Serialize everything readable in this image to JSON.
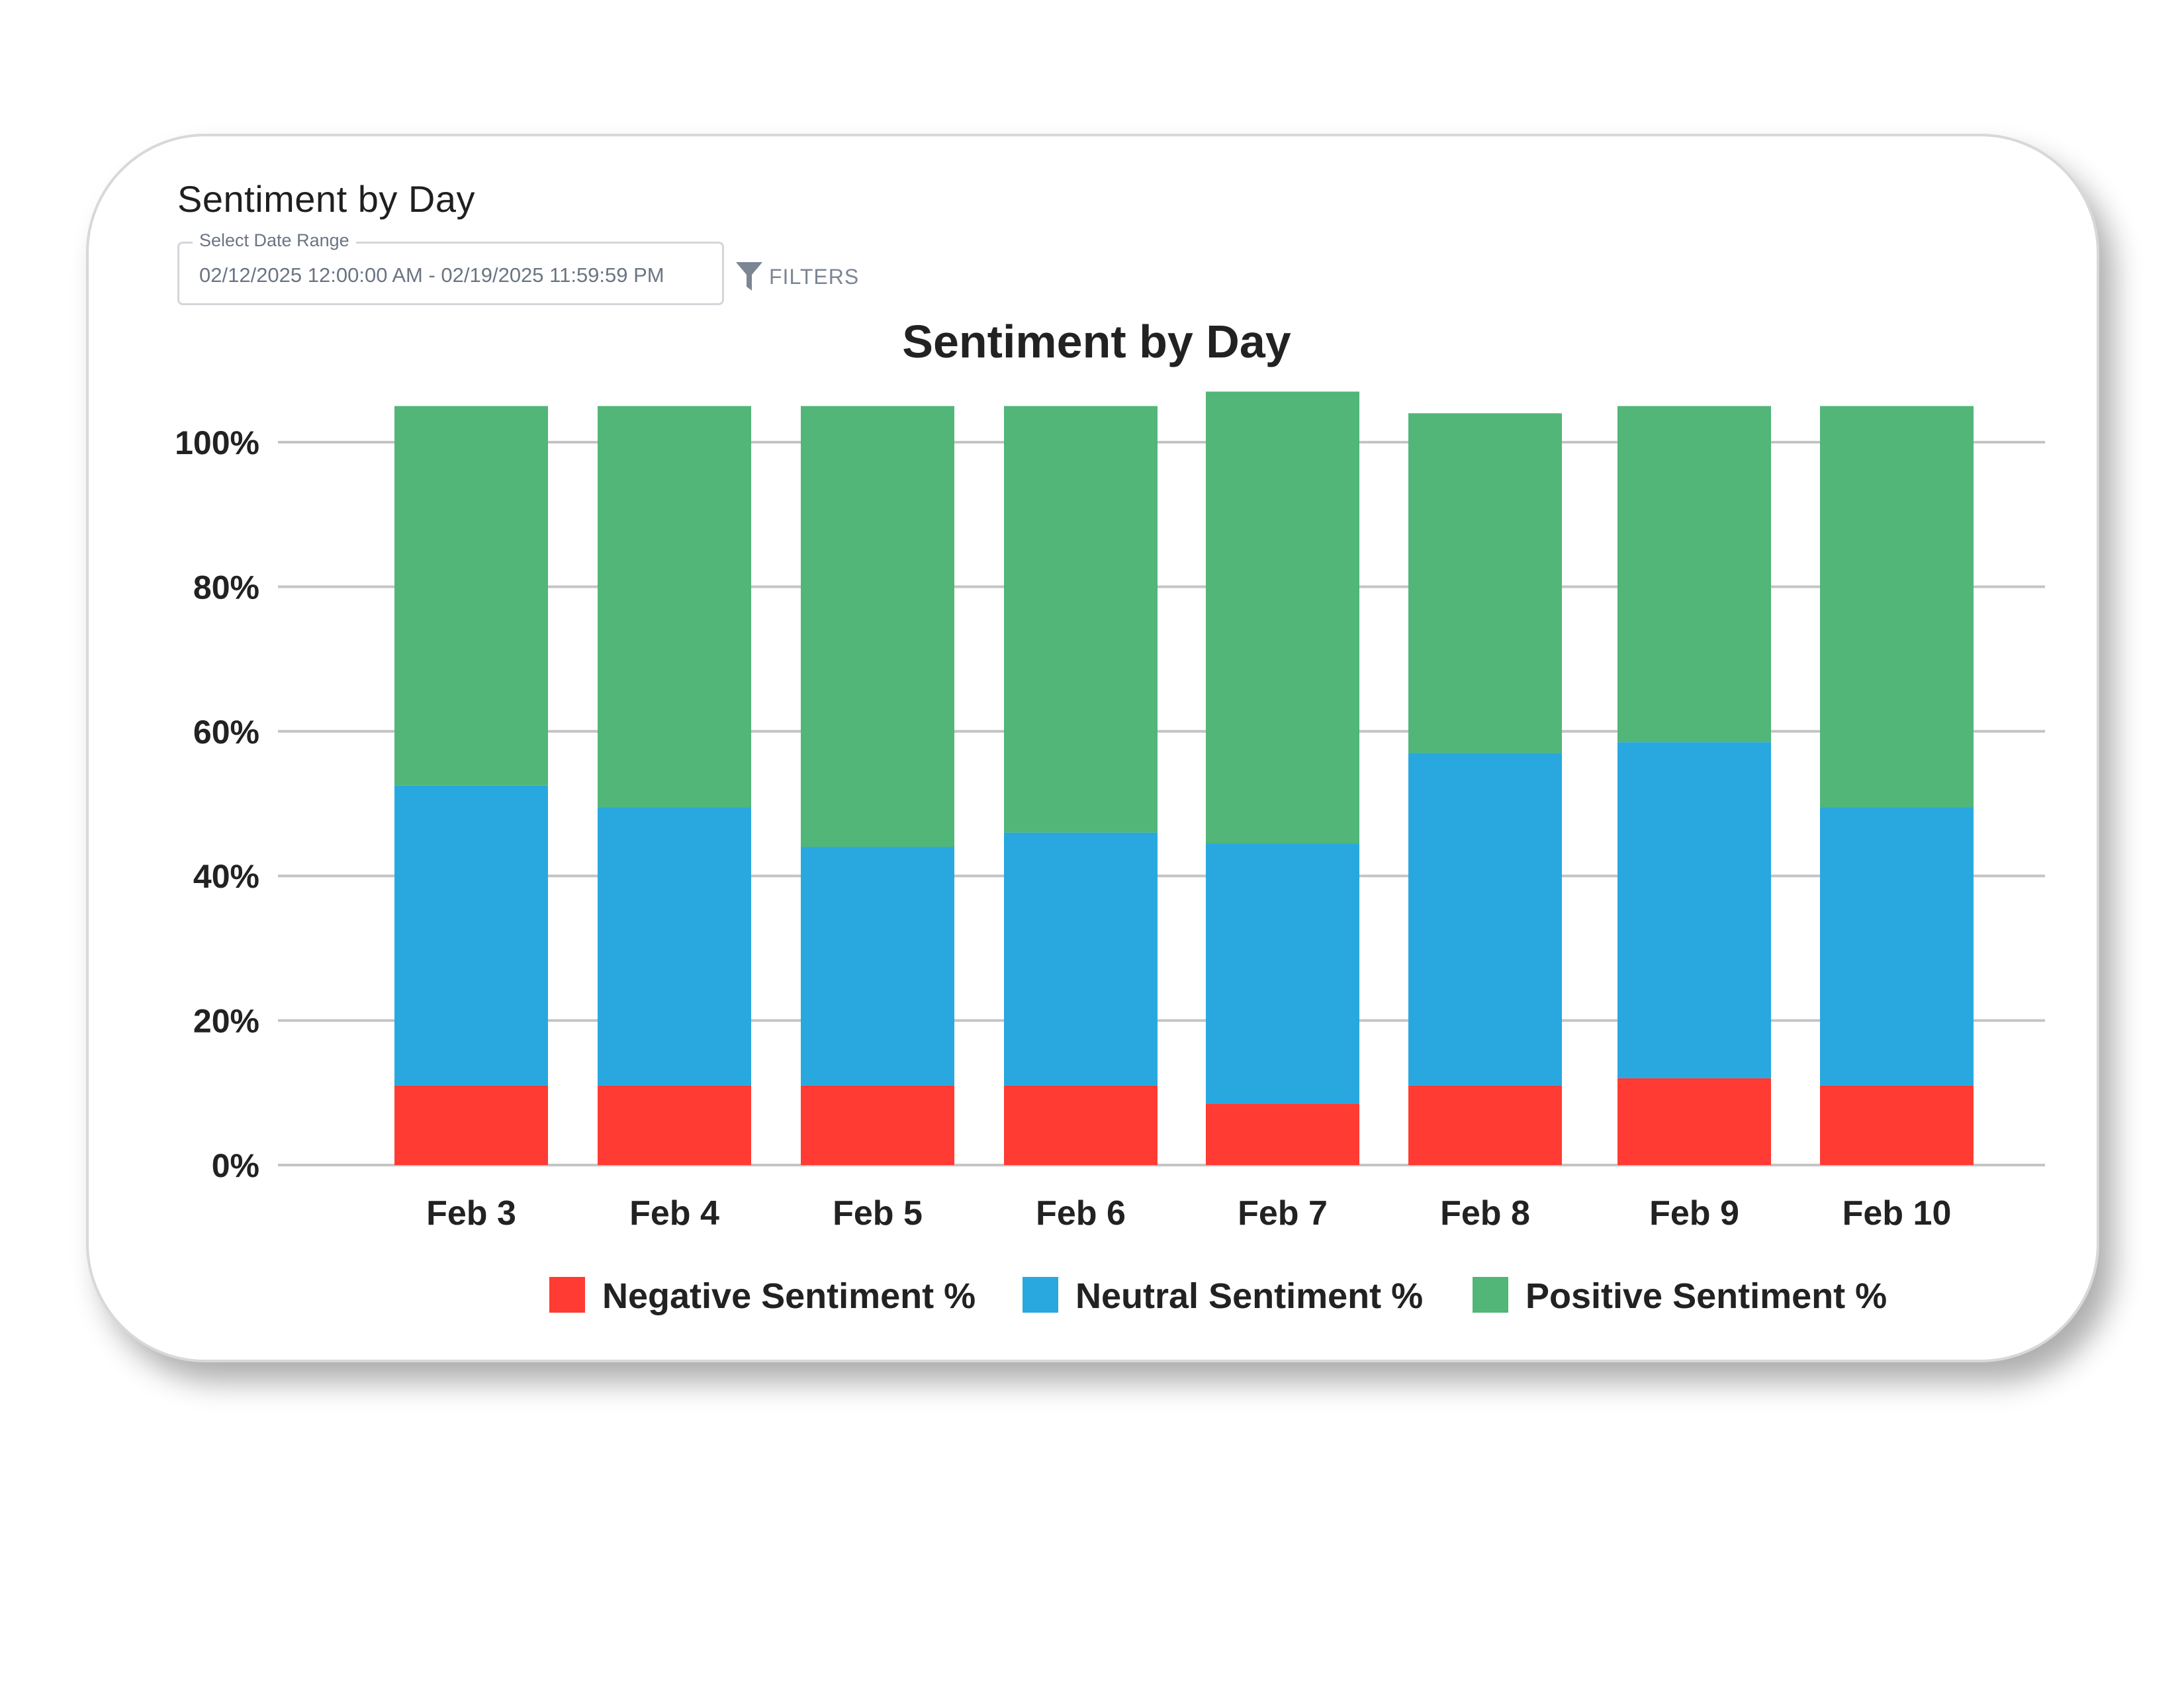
{
  "widget": {
    "title": "Sentiment by Day",
    "date_range_label": "Select Date Range",
    "date_range_value": "02/12/2025 12:00:00 AM - 02/19/2025 11:59:59 PM",
    "filters_label": "FILTERS",
    "filter_icon": "funnel-icon"
  },
  "colors": {
    "negative": "#ff3b33",
    "neutral": "#29a8df",
    "positive": "#51b678",
    "gridline": "#c4c4c4",
    "text": "#222222"
  },
  "chart_data": {
    "type": "bar",
    "stacked": true,
    "title": "Sentiment by Day",
    "xlabel": "",
    "ylabel": "",
    "categories": [
      "Feb 3",
      "Feb 4",
      "Feb 5",
      "Feb 6",
      "Feb 7",
      "Feb 8",
      "Feb 9",
      "Feb 10"
    ],
    "ylim": [
      0,
      100
    ],
    "yticks": [
      0,
      20,
      40,
      60,
      80,
      100
    ],
    "ytick_labels": [
      "0%",
      "20%",
      "40%",
      "60%",
      "80%",
      "100%"
    ],
    "grid": true,
    "legend": "bottom",
    "series": [
      {
        "name": "Negative Sentiment %",
        "values": [
          11,
          11,
          11,
          11,
          8.5,
          11,
          12,
          11
        ]
      },
      {
        "name": "Neutral Sentiment %",
        "values": [
          41.5,
          38.5,
          33,
          35,
          36,
          46,
          46.5,
          38.5
        ]
      },
      {
        "name": "Positive Sentiment %",
        "values": [
          52.5,
          55.5,
          61,
          59,
          62.5,
          47,
          46.5,
          55.5
        ]
      }
    ]
  }
}
